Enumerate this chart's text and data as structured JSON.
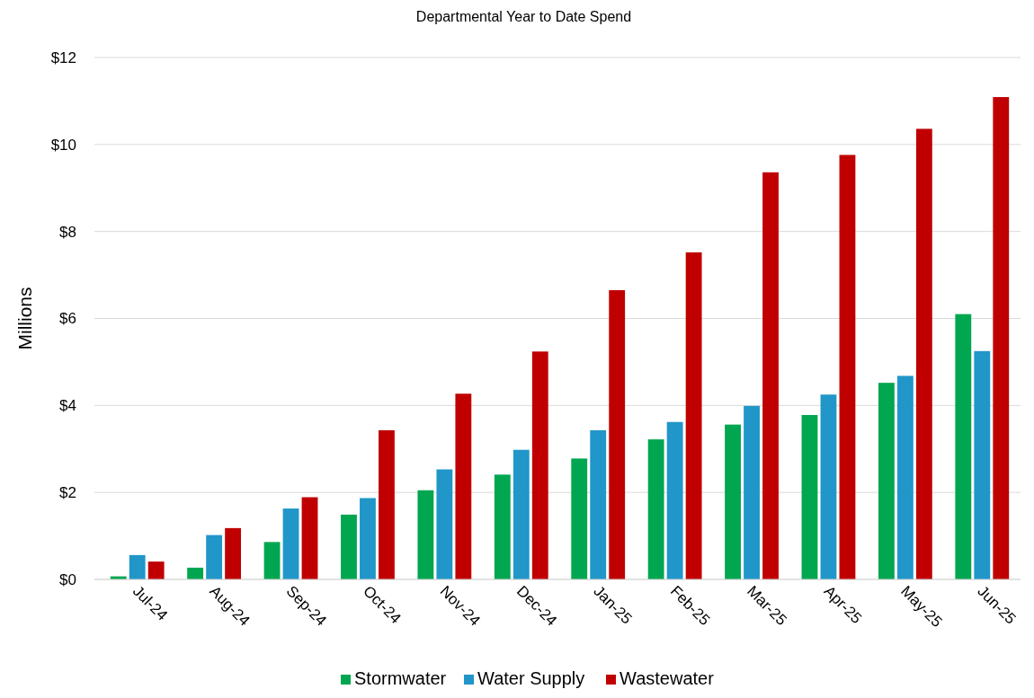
{
  "chart_data": {
    "type": "bar",
    "title": "Departmental Year to Date Spend",
    "ylabel": "Millions",
    "categories": [
      "Jul-24",
      "Aug-24",
      "Sep-24",
      "Oct-24",
      "Nov-24",
      "Dec-24",
      "Jan-25",
      "Feb-25",
      "Mar-25",
      "Apr-25",
      "May-25",
      "Jun-25"
    ],
    "series": [
      {
        "name": "Stormwater",
        "color": "#00a650",
        "values": [
          0.07,
          0.27,
          0.86,
          1.49,
          2.05,
          2.41,
          2.78,
          3.22,
          3.56,
          3.78,
          4.52,
          6.1
        ]
      },
      {
        "name": "Water Supply",
        "color": "#2196c8",
        "values": [
          0.56,
          1.02,
          1.63,
          1.87,
          2.53,
          2.98,
          3.43,
          3.62,
          3.99,
          4.25,
          4.68,
          5.25
        ]
      },
      {
        "name": "Wastewater",
        "color": "#c00000",
        "values": [
          0.41,
          1.18,
          1.89,
          3.43,
          4.27,
          5.24,
          6.65,
          7.52,
          9.36,
          9.76,
          10.36,
          11.09
        ]
      }
    ],
    "ylim": [
      0,
      12
    ],
    "yticks": [
      {
        "value": 0,
        "label": "$0"
      },
      {
        "value": 2,
        "label": "$2"
      },
      {
        "value": 4,
        "label": "$4"
      },
      {
        "value": 6,
        "label": "$6"
      },
      {
        "value": 8,
        "label": "$8"
      },
      {
        "value": 10,
        "label": "$10"
      },
      {
        "value": 12,
        "label": "$12"
      }
    ],
    "grid": "y",
    "legend": "bottom"
  }
}
